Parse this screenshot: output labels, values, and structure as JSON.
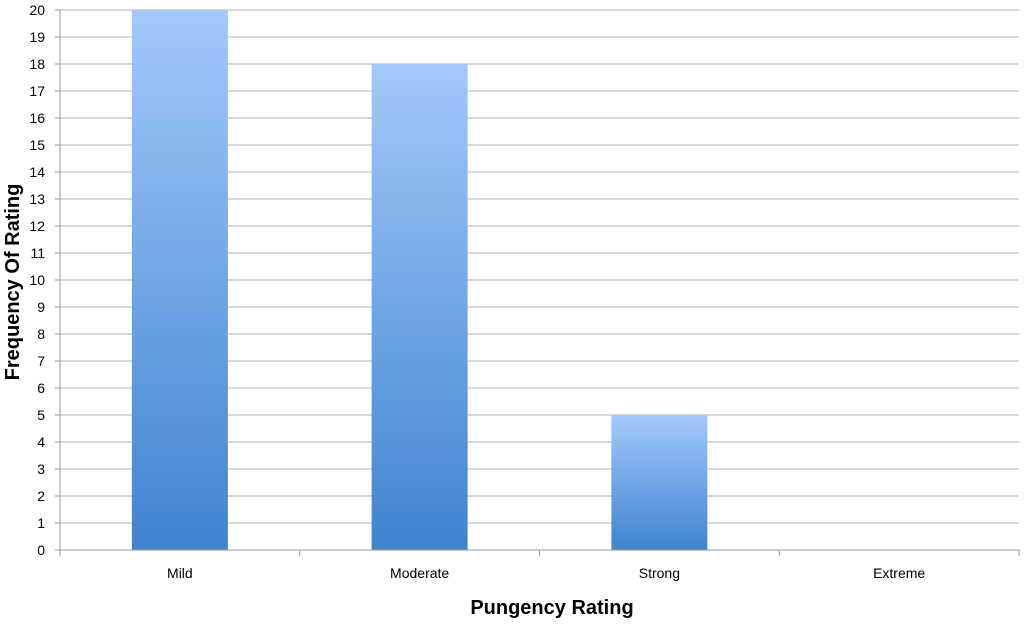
{
  "chart_data": {
    "type": "bar",
    "title": "",
    "xlabel": "Pungency Rating",
    "ylabel": "Frequency Of Rating",
    "categories": [
      "Mild",
      "Moderate",
      "Strong",
      "Extreme"
    ],
    "values": [
      20,
      18,
      5,
      0
    ],
    "ylim": [
      0,
      20
    ],
    "yticks": [
      0,
      1,
      2,
      3,
      4,
      5,
      6,
      7,
      8,
      9,
      10,
      11,
      12,
      13,
      14,
      15,
      16,
      17,
      18,
      19,
      20
    ],
    "grid": true,
    "legend": "none",
    "colors": {
      "bar_top": "#a3c8fb",
      "bar_bottom": "#3f84cf",
      "grid": "#b0b0b0",
      "axis": "#9a9a9a"
    }
  }
}
